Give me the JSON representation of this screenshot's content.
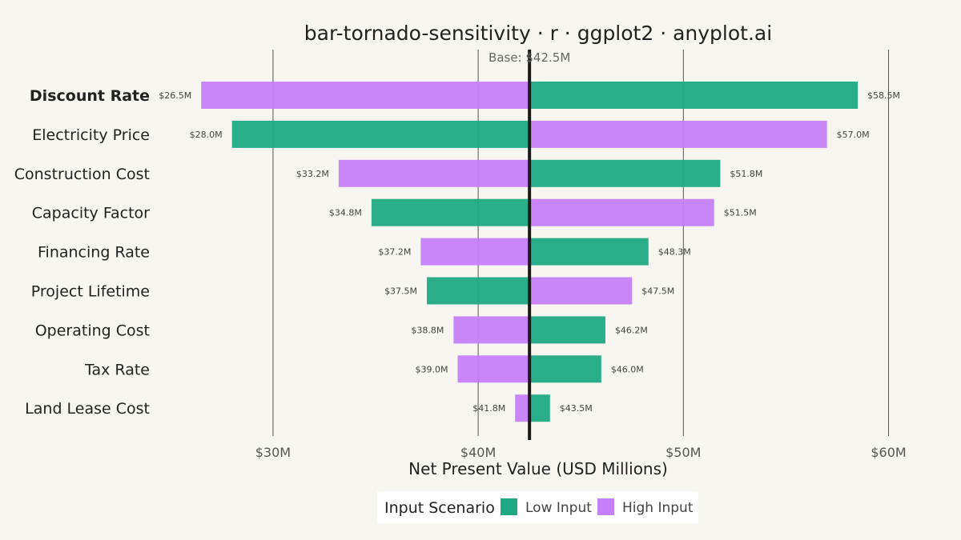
{
  "chart_data": {
    "type": "bar",
    "orientation": "horizontal-tornado",
    "title": "bar-tornado-sensitivity · r · ggplot2 · anyplot.ai",
    "xlabel": "Net Present Value (USD Millions)",
    "base_value": 42.5,
    "base_label": "Base: $42.5M",
    "xlim": [
      24.5,
      60.8
    ],
    "x_ticks": [
      {
        "value": 30,
        "label": "$30M"
      },
      {
        "value": 40,
        "label": "$40M"
      },
      {
        "value": 50,
        "label": "$50M"
      },
      {
        "value": 60,
        "label": "$60M"
      }
    ],
    "grid": true,
    "colors": {
      "low": "#1FAA84",
      "high": "#C57FF8",
      "base_line": "#1A1A1A",
      "background": "#F8F6F0"
    },
    "legend": {
      "title": "Input Scenario",
      "position": "bottom",
      "items": [
        {
          "key": "low",
          "label": "Low Input"
        },
        {
          "key": "high",
          "label": "High Input"
        }
      ]
    },
    "rows": [
      {
        "label": "Discount Rate",
        "bold": true,
        "left": {
          "value": 26.5,
          "label": "$26.5M",
          "scenario": "high"
        },
        "right": {
          "value": 58.5,
          "label": "$58.5M",
          "scenario": "low"
        }
      },
      {
        "label": "Electricity Price",
        "bold": false,
        "left": {
          "value": 28.0,
          "label": "$28.0M",
          "scenario": "low"
        },
        "right": {
          "value": 57.0,
          "label": "$57.0M",
          "scenario": "high"
        }
      },
      {
        "label": "Construction Cost",
        "bold": false,
        "left": {
          "value": 33.2,
          "label": "$33.2M",
          "scenario": "high"
        },
        "right": {
          "value": 51.8,
          "label": "$51.8M",
          "scenario": "low"
        }
      },
      {
        "label": "Capacity Factor",
        "bold": false,
        "left": {
          "value": 34.8,
          "label": "$34.8M",
          "scenario": "low"
        },
        "right": {
          "value": 51.5,
          "label": "$51.5M",
          "scenario": "high"
        }
      },
      {
        "label": "Financing Rate",
        "bold": false,
        "left": {
          "value": 37.2,
          "label": "$37.2M",
          "scenario": "high"
        },
        "right": {
          "value": 48.3,
          "label": "$48.3M",
          "scenario": "low"
        }
      },
      {
        "label": "Project Lifetime",
        "bold": false,
        "left": {
          "value": 37.5,
          "label": "$37.5M",
          "scenario": "low"
        },
        "right": {
          "value": 47.5,
          "label": "$47.5M",
          "scenario": "high"
        }
      },
      {
        "label": "Operating Cost",
        "bold": false,
        "left": {
          "value": 38.8,
          "label": "$38.8M",
          "scenario": "high"
        },
        "right": {
          "value": 46.2,
          "label": "$46.2M",
          "scenario": "low"
        }
      },
      {
        "label": "Tax Rate",
        "bold": false,
        "left": {
          "value": 39.0,
          "label": "$39.0M",
          "scenario": "high"
        },
        "right": {
          "value": 46.0,
          "label": "$46.0M",
          "scenario": "low"
        }
      },
      {
        "label": "Land Lease Cost",
        "bold": false,
        "left": {
          "value": 41.8,
          "label": "$41.8M",
          "scenario": "high"
        },
        "right": {
          "value": 43.5,
          "label": "$43.5M",
          "scenario": "low"
        }
      }
    ]
  }
}
